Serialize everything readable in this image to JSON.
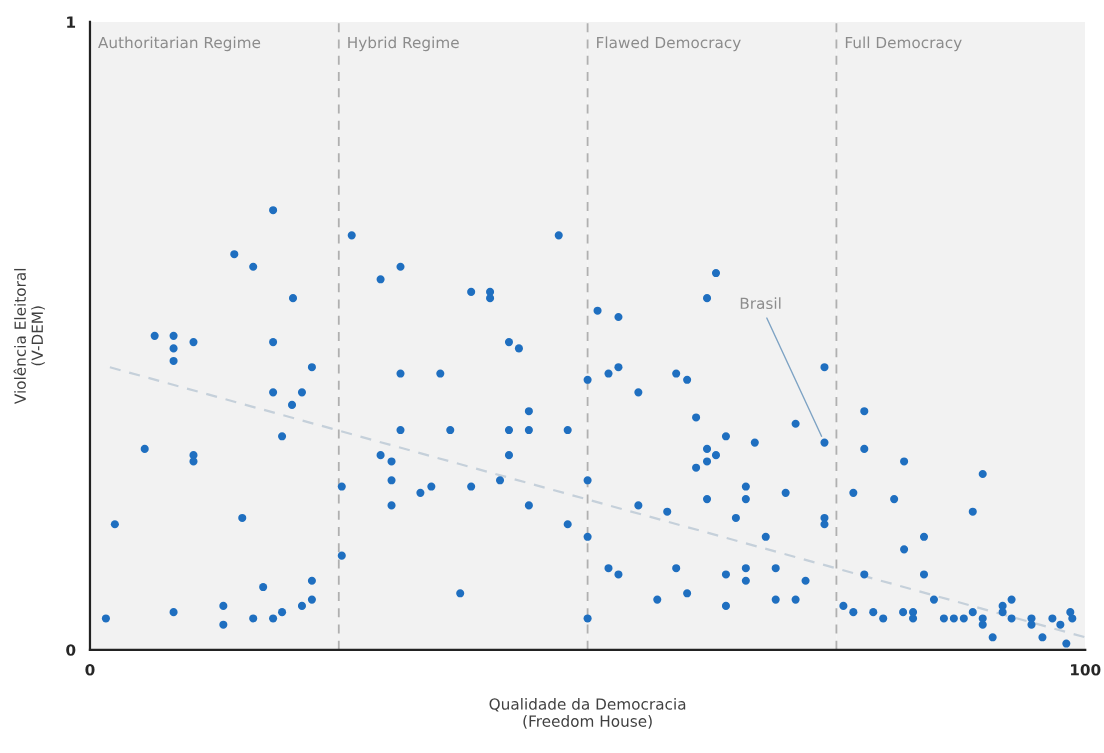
{
  "chart_data": {
    "type": "scatter",
    "xlabel": "Qualidade da Democracia\n(Freedom House)",
    "ylabel": "Violência Eleitoral\n(V-DEM)",
    "xlim": [
      0,
      100
    ],
    "ylim": [
      0,
      1
    ],
    "xticks": [
      0,
      100
    ],
    "yticks": [
      0,
      1
    ],
    "grid": false,
    "legend": false,
    "series": [
      {
        "color": "#1f6fc0",
        "marker": "circle",
        "x": [
          18.4,
          14.5,
          16.4,
          20.4,
          6.5,
          8.4,
          8.4,
          8.4,
          10.4,
          18.4,
          22.3,
          18.4,
          21.3,
          20.3,
          19.3,
          5.5,
          10.4,
          10.4,
          15.3,
          2.5,
          17.4,
          22.3,
          22.3,
          21.3,
          13.4,
          13.4,
          1.6,
          8.4,
          16.4,
          18.4,
          19.3,
          25.3,
          25.3,
          26.3,
          31.2,
          29.2,
          38.3,
          40.2,
          40.2,
          47.1,
          42.1,
          43.1,
          31.2,
          35.2,
          44.1,
          31.2,
          36.2,
          42.1,
          44.1,
          48.0,
          29.2,
          30.3,
          30.3,
          33.2,
          34.3,
          38.3,
          41.2,
          42.1,
          30.3,
          44.1,
          48.0,
          37.2,
          50.0,
          50.0,
          50.0,
          50.0,
          62.9,
          62.0,
          51.0,
          53.1,
          53.1,
          52.1,
          55.1,
          58.9,
          60.0,
          73.8,
          60.9,
          63.9,
          62.0,
          62.9,
          60.9,
          62.0,
          66.8,
          70.9,
          73.8,
          55.1,
          58.0,
          62.0,
          65.9,
          65.9,
          69.9,
          64.9,
          67.9,
          73.8,
          73.8,
          52.1,
          53.1,
          58.9,
          63.9,
          65.9,
          65.9,
          68.9,
          71.9,
          57.0,
          60.0,
          63.9,
          68.9,
          70.9,
          77.8,
          77.8,
          81.8,
          89.7,
          76.7,
          80.8,
          88.7,
          83.8,
          81.8,
          77.8,
          83.8,
          84.8,
          75.7,
          76.7,
          78.7,
          79.7,
          81.7,
          82.7,
          82.7,
          85.8,
          86.8,
          87.8,
          88.7,
          89.7,
          89.7,
          90.7,
          91.7,
          91.7,
          92.6,
          92.6,
          94.6,
          94.6,
          95.7,
          96.7,
          97.5,
          98.5,
          98.7,
          98.1
        ],
        "values": [
          0.7,
          0.63,
          0.61,
          0.56,
          0.5,
          0.5,
          0.48,
          0.46,
          0.49,
          0.49,
          0.45,
          0.41,
          0.41,
          0.39,
          0.34,
          0.32,
          0.31,
          0.3,
          0.21,
          0.2,
          0.1,
          0.11,
          0.08,
          0.07,
          0.07,
          0.04,
          0.05,
          0.06,
          0.05,
          0.05,
          0.06,
          0.26,
          0.15,
          0.66,
          0.61,
          0.59,
          0.57,
          0.57,
          0.56,
          0.66,
          0.49,
          0.48,
          0.44,
          0.44,
          0.38,
          0.35,
          0.35,
          0.35,
          0.35,
          0.35,
          0.31,
          0.3,
          0.27,
          0.25,
          0.26,
          0.26,
          0.27,
          0.31,
          0.23,
          0.23,
          0.2,
          0.09,
          0.43,
          0.27,
          0.18,
          0.05,
          0.6,
          0.56,
          0.54,
          0.53,
          0.45,
          0.44,
          0.41,
          0.44,
          0.43,
          0.45,
          0.37,
          0.34,
          0.32,
          0.31,
          0.29,
          0.3,
          0.33,
          0.36,
          0.33,
          0.23,
          0.22,
          0.24,
          0.26,
          0.24,
          0.25,
          0.21,
          0.18,
          0.21,
          0.2,
          0.13,
          0.12,
          0.13,
          0.12,
          0.13,
          0.11,
          0.13,
          0.11,
          0.08,
          0.09,
          0.07,
          0.08,
          0.08,
          0.38,
          0.32,
          0.3,
          0.28,
          0.25,
          0.24,
          0.22,
          0.18,
          0.16,
          0.12,
          0.12,
          0.08,
          0.07,
          0.06,
          0.06,
          0.05,
          0.06,
          0.06,
          0.05,
          0.05,
          0.05,
          0.05,
          0.06,
          0.05,
          0.04,
          0.02,
          0.07,
          0.06,
          0.08,
          0.05,
          0.05,
          0.04,
          0.02,
          0.05,
          0.04,
          0.06,
          0.05,
          0.01
        ]
      },
      {
        "type": "line",
        "color": "#c5d0da",
        "line_style": "dashed",
        "x": [
          2,
          100
        ],
        "values": [
          0.45,
          0.02
        ]
      }
    ],
    "bands": [
      {
        "axis": "x",
        "from": 0,
        "to": 25,
        "label": "Authoritarian Regime",
        "color": "#f2f2f2"
      },
      {
        "axis": "x",
        "from": 25,
        "to": 50,
        "label": "Hybrid Regime",
        "color": "#f2f2f2"
      },
      {
        "axis": "x",
        "from": 50,
        "to": 75,
        "label": "Flawed Democracy",
        "color": "#f2f2f2"
      },
      {
        "axis": "x",
        "from": 75,
        "to": 100,
        "label": "Full Democracy",
        "color": "#f2f2f2"
      }
    ],
    "ref_lines": [
      {
        "axis": "x",
        "value": 25,
        "color": "#b0b0b0",
        "line_style": "dashed"
      },
      {
        "axis": "x",
        "value": 50,
        "color": "#b0b0b0",
        "line_style": "dashed"
      },
      {
        "axis": "x",
        "value": 75,
        "color": "#b0b0b0",
        "line_style": "dashed"
      }
    ],
    "annotations": [
      {
        "text": "Brasil",
        "x": 73.8,
        "y": 0.33
      }
    ]
  }
}
